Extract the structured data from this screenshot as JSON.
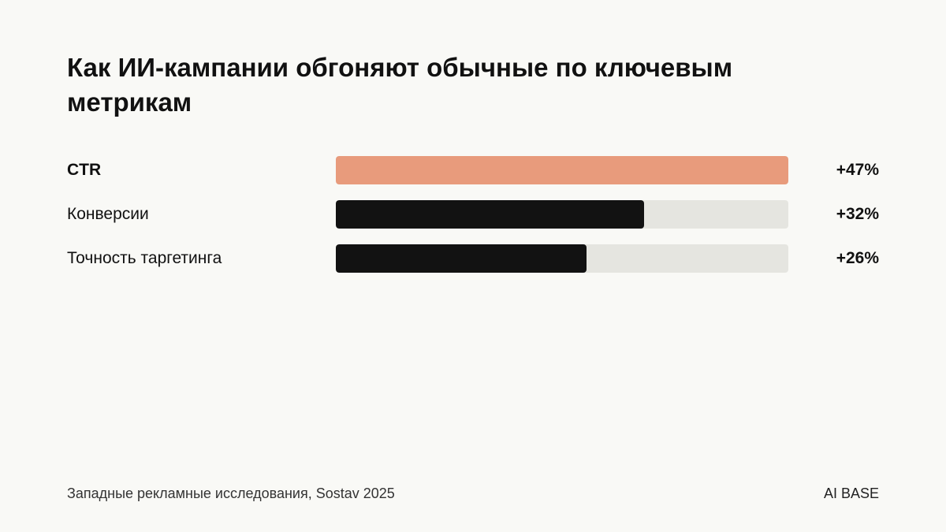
{
  "title": "Как ИИ-кампании обгоняют обычные по ключевым метрикам",
  "chart_data": {
    "type": "bar",
    "orientation": "horizontal",
    "categories": [
      "CTR",
      "Конверсии",
      "Точность таргетинга"
    ],
    "values": [
      47,
      32,
      26
    ],
    "value_labels": [
      "+47%",
      "+32%",
      "+26%"
    ],
    "xlim": [
      0,
      47
    ],
    "colors": {
      "highlight": "#e89b7c",
      "default": "#121212",
      "track": "#e5e5e0"
    },
    "highlight_index": 0,
    "grid": false
  },
  "footer": {
    "source": "Западные рекламные исследования, Sostav 2025",
    "brand": "AI BASE"
  }
}
